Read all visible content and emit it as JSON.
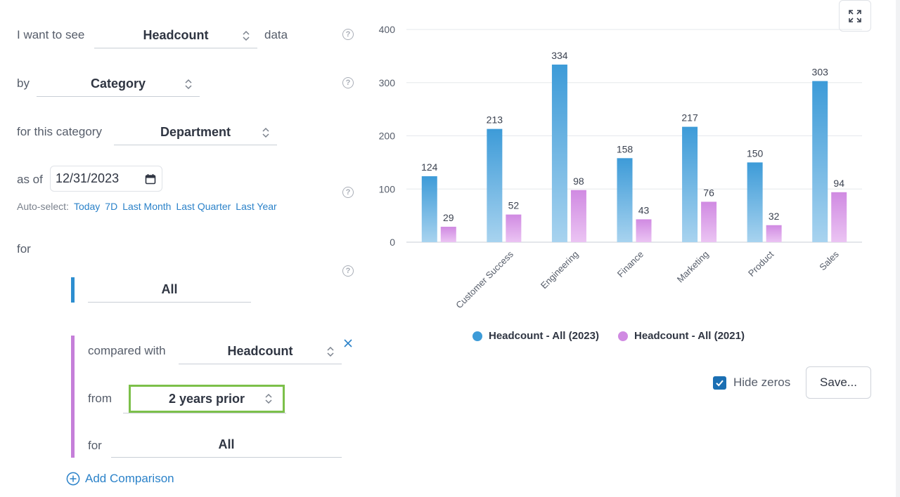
{
  "query": {
    "prefix": "I want to see",
    "metric": "Headcount",
    "suffix": "data",
    "by_label": "by",
    "by_value": "Category",
    "category_label": "for this category",
    "category_value": "Department",
    "as_of_label": "as of",
    "as_of_date": "12/31/2023",
    "autoselect_label": "Auto-select:",
    "autoselect_options": [
      "Today",
      "7D",
      "Last Month",
      "Last Quarter",
      "Last Year"
    ],
    "for_label": "for",
    "for_value": "All"
  },
  "comparison": {
    "compared_label": "compared with",
    "compared_value": "Headcount",
    "from_label": "from",
    "from_value": "2 years prior",
    "for_label": "for",
    "for_value": "All"
  },
  "add_comparison_label": "Add Comparison",
  "help_glyph": "?",
  "hide_zeros": {
    "label": "Hide zeros",
    "checked": true
  },
  "save_label": "Save...",
  "colors": {
    "series_2023": "#3d9bd8",
    "series_2021": "#d08ae2",
    "accent": "#2b82c9",
    "highlight": "#7cc04a"
  },
  "chart_data": {
    "type": "bar",
    "categories": [
      "",
      "Customer Success",
      "Engineering",
      "Finance",
      "Marketing",
      "Product",
      "Sales"
    ],
    "series": [
      {
        "name": "Headcount - All (2023)",
        "values": [
          124,
          213,
          334,
          158,
          217,
          150,
          303
        ]
      },
      {
        "name": "Headcount - All (2021)",
        "values": [
          29,
          52,
          98,
          43,
          76,
          32,
          94
        ]
      }
    ],
    "ylim": [
      0,
      400
    ],
    "yticks": [
      0,
      100,
      200,
      300,
      400
    ],
    "grid": true,
    "legend": "bottom"
  }
}
